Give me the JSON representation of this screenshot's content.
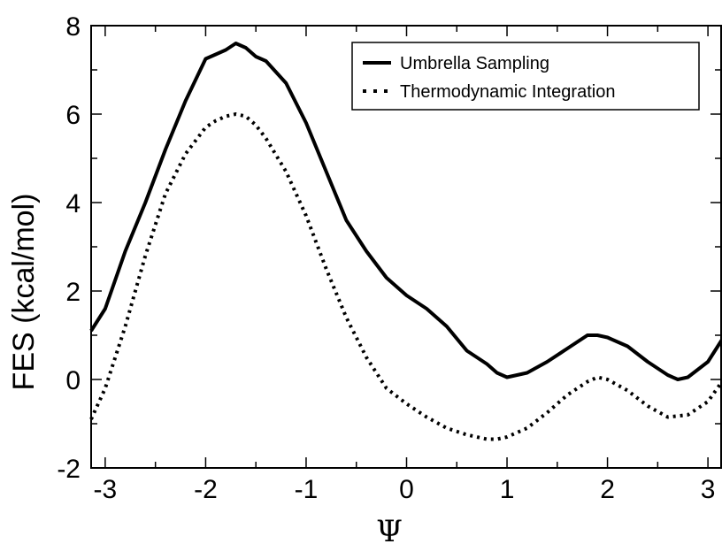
{
  "chart_data": {
    "type": "line",
    "title": "",
    "xlabel": "Ψ",
    "ylabel": "FES (kcal/mol)",
    "xlim": [
      -3.14,
      3.14
    ],
    "ylim": [
      -2,
      8
    ],
    "x_ticks": [
      -3,
      -2,
      -1,
      0,
      1,
      2,
      3
    ],
    "y_ticks": [
      -2,
      0,
      2,
      4,
      6,
      8
    ],
    "x_tick_labels": [
      "-3",
      "-2",
      "-1",
      "0",
      "1",
      "2",
      "3"
    ],
    "y_tick_labels": [
      "-2",
      "0",
      "2",
      "4",
      "6",
      "8"
    ],
    "grid": false,
    "legend_position": "top-right",
    "series": [
      {
        "name": "Umbrella Sampling",
        "style": "solid",
        "color": "#000000",
        "x": [
          -3.14,
          -3.0,
          -2.8,
          -2.6,
          -2.4,
          -2.2,
          -2.0,
          -1.9,
          -1.8,
          -1.7,
          -1.6,
          -1.5,
          -1.4,
          -1.2,
          -1.0,
          -0.8,
          -0.6,
          -0.4,
          -0.2,
          0.0,
          0.2,
          0.4,
          0.6,
          0.8,
          0.9,
          1.0,
          1.1,
          1.2,
          1.4,
          1.6,
          1.8,
          1.9,
          2.0,
          2.2,
          2.4,
          2.6,
          2.7,
          2.8,
          3.0,
          3.14
        ],
        "y": [
          1.1,
          1.6,
          2.9,
          4.0,
          5.2,
          6.3,
          7.25,
          7.35,
          7.45,
          7.6,
          7.5,
          7.3,
          7.2,
          6.7,
          5.8,
          4.7,
          3.6,
          2.9,
          2.3,
          1.9,
          1.6,
          1.2,
          0.65,
          0.35,
          0.15,
          0.05,
          0.1,
          0.15,
          0.4,
          0.7,
          1.0,
          1.0,
          0.95,
          0.75,
          0.4,
          0.1,
          0.0,
          0.05,
          0.4,
          0.9
        ]
      },
      {
        "name": "Thermodynamic Integration",
        "style": "dotted",
        "color": "#000000",
        "x": [
          -3.14,
          -3.0,
          -2.8,
          -2.6,
          -2.4,
          -2.2,
          -2.0,
          -1.9,
          -1.8,
          -1.7,
          -1.6,
          -1.5,
          -1.4,
          -1.2,
          -1.0,
          -0.8,
          -0.6,
          -0.4,
          -0.2,
          0.0,
          0.2,
          0.4,
          0.6,
          0.8,
          0.9,
          1.0,
          1.2,
          1.4,
          1.6,
          1.8,
          1.9,
          2.0,
          2.2,
          2.4,
          2.6,
          2.8,
          3.0,
          3.14
        ],
        "y": [
          -0.9,
          -0.2,
          1.2,
          2.8,
          4.2,
          5.1,
          5.7,
          5.85,
          5.95,
          6.0,
          5.95,
          5.75,
          5.45,
          4.7,
          3.7,
          2.5,
          1.4,
          0.5,
          -0.2,
          -0.55,
          -0.85,
          -1.1,
          -1.25,
          -1.35,
          -1.35,
          -1.3,
          -1.1,
          -0.75,
          -0.35,
          -0.05,
          0.05,
          0.0,
          -0.25,
          -0.6,
          -0.85,
          -0.8,
          -0.5,
          -0.05
        ]
      }
    ]
  }
}
